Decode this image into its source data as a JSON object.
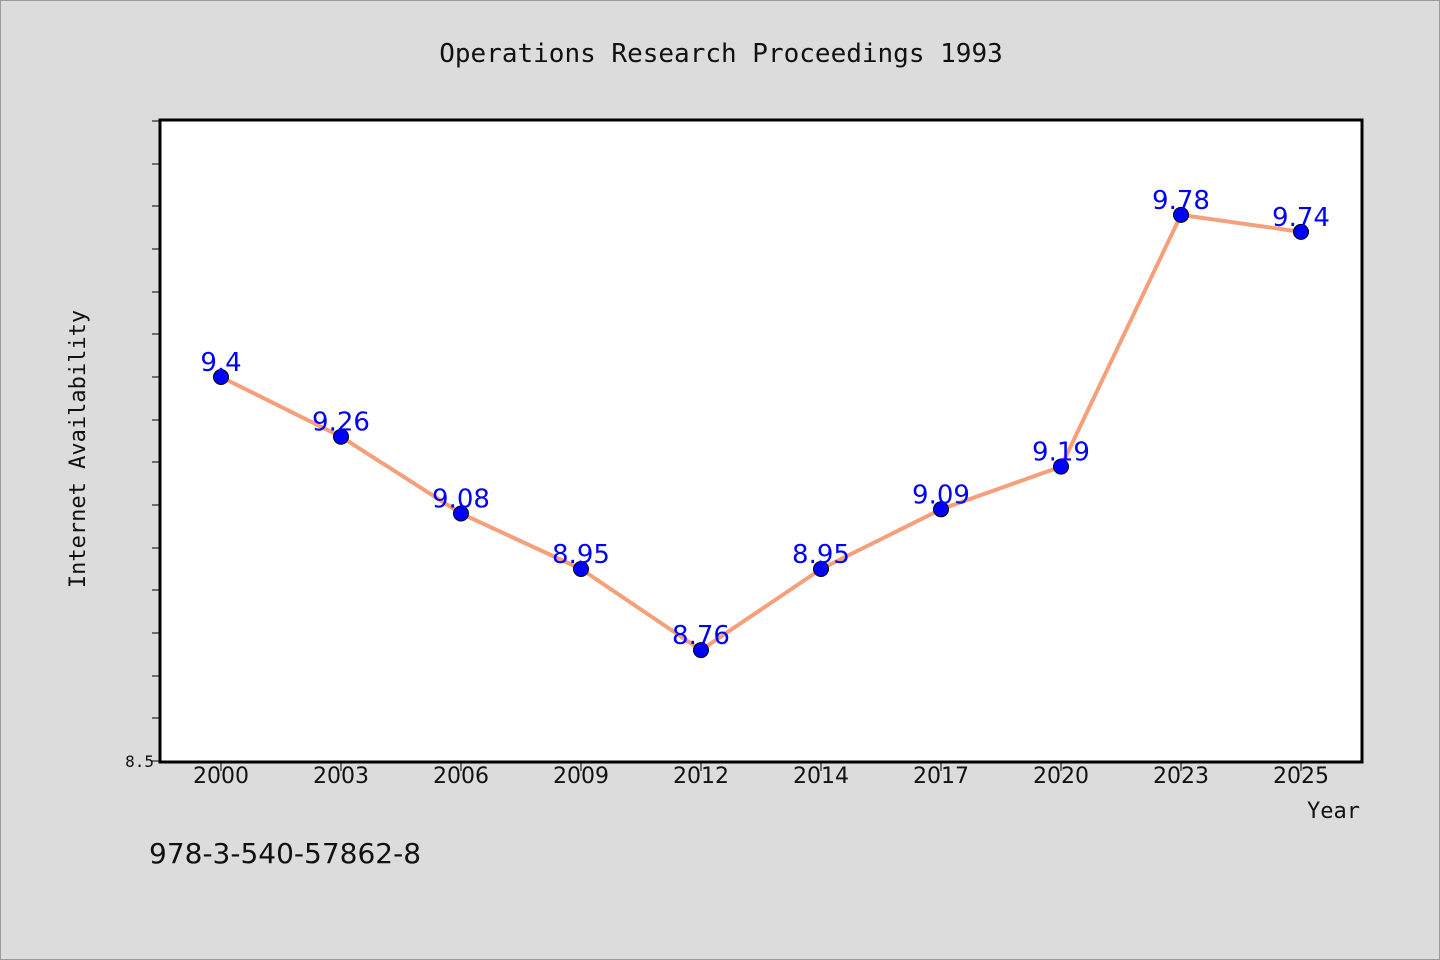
{
  "footer": {
    "isbn": "978-3-540-57862-8"
  },
  "colors": {
    "background": "#dcdcdc",
    "plot_background": "#ffffff",
    "line": "#f4a07a",
    "marker": "#0000ff",
    "data_label": "#0000ff"
  },
  "chart_data": {
    "type": "line",
    "title": "Operations Research Proceedings 1993",
    "xlabel": "Year",
    "ylabel": "Internet Availability",
    "categories": [
      "2000",
      "2003",
      "2006",
      "2009",
      "2012",
      "2014",
      "2017",
      "2020",
      "2023",
      "2025"
    ],
    "series": [
      {
        "values": [
          9.4,
          9.26,
          9.08,
          8.95,
          8.76,
          8.95,
          9.09,
          9.19,
          9.78,
          9.74
        ]
      }
    ],
    "data_labels": [
      "9.4",
      "9.26",
      "9.08",
      "8.95",
      "8.76",
      "8.95",
      "9.09",
      "9.19",
      "9.78",
      "9.74"
    ],
    "ylim": [
      8.5,
      10.0
    ],
    "ytick_labels": [
      "8.5"
    ],
    "grid": false,
    "legend": "none"
  }
}
